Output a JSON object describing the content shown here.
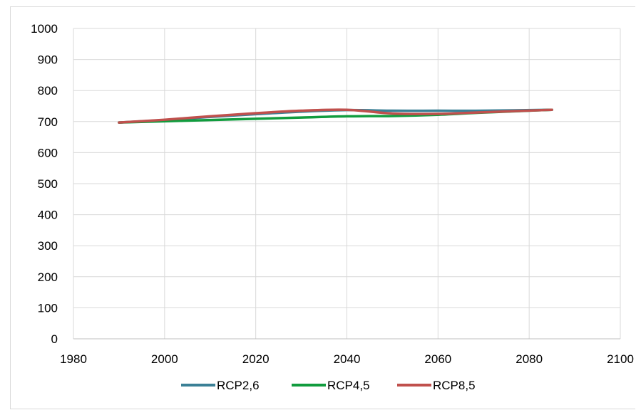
{
  "chart_data": {
    "type": "line",
    "title": "",
    "xlabel": "",
    "ylabel": "",
    "xlim": [
      1980,
      2100
    ],
    "ylim": [
      0,
      1000
    ],
    "x_ticks": [
      1980,
      2000,
      2020,
      2040,
      2060,
      2080,
      2100
    ],
    "y_ticks": [
      0,
      100,
      200,
      300,
      400,
      500,
      600,
      700,
      800,
      900,
      1000
    ],
    "grid": true,
    "legend_position": "bottom",
    "series": [
      {
        "name": "RCP2,6",
        "color": "#3b8096",
        "x": [
          1990,
          2000,
          2010,
          2020,
          2030,
          2040,
          2050,
          2060,
          2070,
          2085
        ],
        "y": [
          697,
          705,
          715,
          724,
          732,
          737,
          735,
          735,
          735,
          738
        ]
      },
      {
        "name": "RCP4,5",
        "color": "#119c3e",
        "x": [
          1990,
          2000,
          2010,
          2020,
          2030,
          2040,
          2050,
          2060,
          2070,
          2085
        ],
        "y": [
          697,
          701,
          705,
          709,
          713,
          717,
          718,
          722,
          729,
          738
        ]
      },
      {
        "name": "RCP8,5",
        "color": "#c0504d",
        "x": [
          1990,
          2000,
          2010,
          2020,
          2030,
          2040,
          2050,
          2060,
          2070,
          2085
        ],
        "y": [
          697,
          706,
          717,
          727,
          735,
          738,
          726,
          725,
          730,
          738
        ]
      }
    ]
  }
}
